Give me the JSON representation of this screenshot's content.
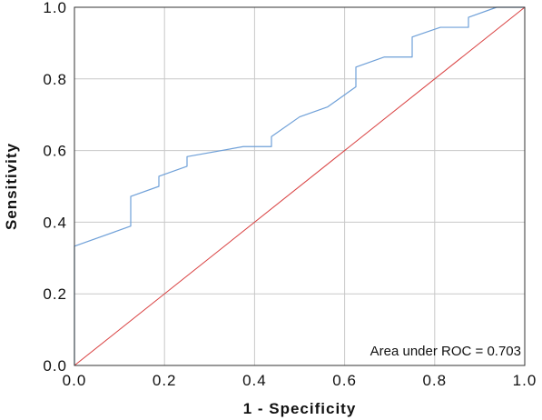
{
  "chart_data": {
    "type": "line",
    "xlabel": "1 - Specificity",
    "ylabel": "Sensitivity",
    "xlim": [
      0,
      1
    ],
    "ylim": [
      0,
      1
    ],
    "grid": true,
    "xticks": [
      "0.0",
      "0.2",
      "0.4",
      "0.6",
      "0.8",
      "1.0"
    ],
    "yticks": [
      "0.0",
      "0.2",
      "0.4",
      "0.6",
      "0.8",
      "1.0"
    ],
    "annotation": "Area under ROC = 0.703",
    "colors": {
      "roc": "#6fa0d8",
      "reference": "#d94040",
      "grid": "#c8c8c8",
      "axes": "#333333"
    },
    "series": [
      {
        "x": [
          0,
          0,
          0.125,
          0.125,
          0.1875,
          0.1875,
          0.25,
          0.25,
          0.375,
          0.4375,
          0.4375,
          0.5,
          0.5625,
          0.625,
          0.625,
          0.6875,
          0.75,
          0.75,
          0.8125,
          0.875,
          0.875,
          0.9375,
          1.0
        ],
        "y": [
          0,
          0.333,
          0.389,
          0.472,
          0.5,
          0.528,
          0.556,
          0.583,
          0.611,
          0.611,
          0.639,
          0.694,
          0.722,
          0.778,
          0.833,
          0.861,
          0.861,
          0.917,
          0.944,
          0.944,
          0.972,
          1.0,
          1.0
        ]
      },
      {
        "x": [
          0,
          1
        ],
        "y": [
          0,
          1
        ]
      }
    ]
  }
}
